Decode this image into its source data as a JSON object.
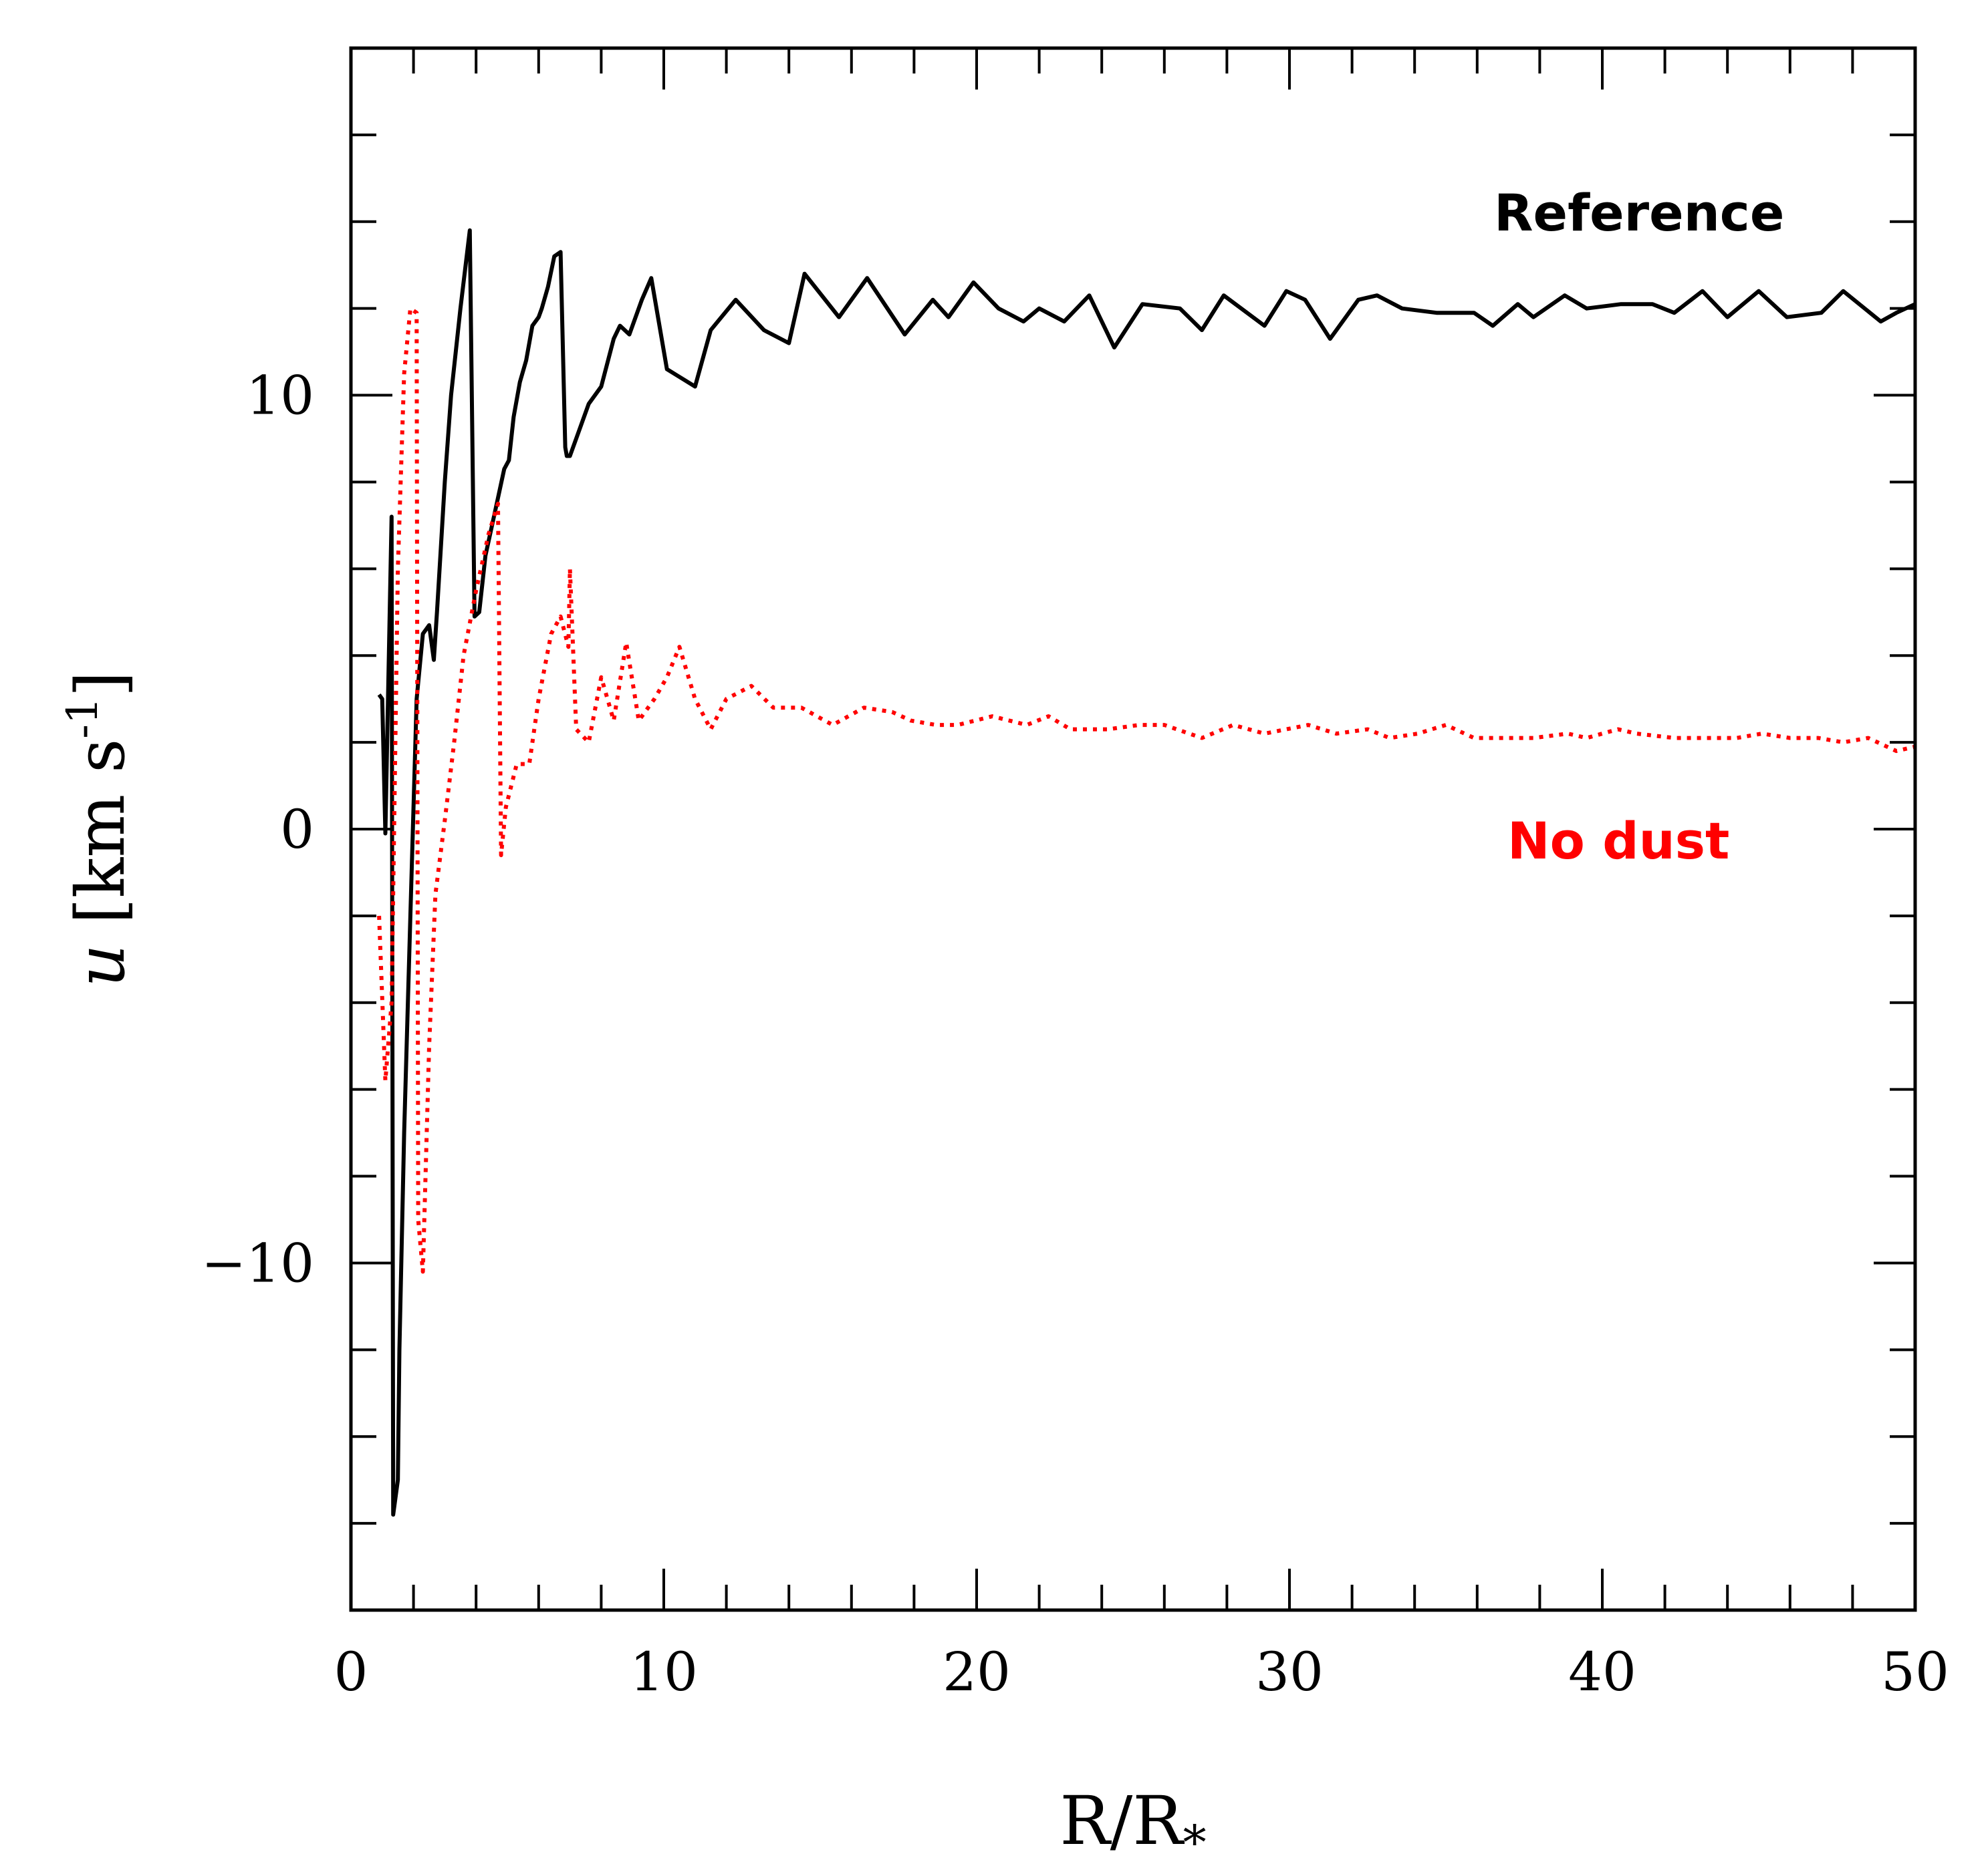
{
  "chart_data": {
    "type": "line",
    "title": "",
    "xlabel": "R/R",
    "xlabel_sub": "*",
    "ylabel": "u",
    "ylabel_units": "[km s",
    "ylabel_exp": "-1",
    "ylabel_close": "]",
    "xlim": [
      0,
      50
    ],
    "ylim": [
      -18,
      18
    ],
    "x_major_ticks": [
      0,
      10,
      20,
      30,
      40,
      50
    ],
    "x_minor_step": 2,
    "y_major_ticks": [
      -10,
      0,
      10
    ],
    "y_minor_step": 2,
    "grid": false,
    "series": [
      {
        "name": "Reference",
        "color": "#000000",
        "style": "solid",
        "label_color": "#000000",
        "x": [
          0.9,
          1.0,
          1.1,
          1.3,
          1.35,
          1.5,
          1.55,
          1.7,
          1.9,
          2.1,
          2.3,
          2.5,
          2.65,
          2.75,
          2.85,
          3.0,
          3.2,
          3.5,
          3.8,
          3.95,
          4.1,
          4.3,
          4.6,
          4.9,
          5.05,
          5.2,
          5.4,
          5.6,
          5.8,
          6.0,
          6.1,
          6.3,
          6.5,
          6.7,
          6.85,
          6.9,
          7.0,
          7.2,
          7.6,
          8.0,
          8.4,
          8.6,
          8.9,
          9.3,
          9.6,
          10.1,
          11.0,
          11.5,
          12.3,
          13.2,
          14.0,
          14.5,
          15.6,
          16.5,
          17.7,
          18.6,
          19.1,
          19.9,
          20.7,
          21.5,
          22.0,
          22.8,
          23.6,
          24.4,
          25.3,
          26.5,
          27.2,
          27.9,
          29.2,
          29.9,
          30.5,
          31.3,
          32.2,
          32.8,
          33.6,
          34.7,
          35.9,
          36.5,
          37.3,
          37.8,
          38.8,
          39.5,
          40.6,
          41.6,
          42.3,
          43.2,
          44.0,
          45.0,
          45.9,
          47.0,
          47.7,
          48.9,
          49.4,
          50.0
        ],
        "y": [
          3.1,
          3.0,
          -0.1,
          7.2,
          -15.8,
          -15.0,
          -12.0,
          -7.0,
          -2.0,
          3.0,
          4.5,
          4.7,
          3.9,
          5.0,
          6.2,
          8.0,
          10.0,
          12.0,
          13.8,
          4.9,
          5.0,
          6.3,
          7.3,
          8.3,
          8.5,
          9.5,
          10.3,
          10.8,
          11.6,
          11.8,
          12.0,
          12.5,
          13.2,
          13.3,
          8.8,
          8.6,
          8.6,
          9.0,
          9.8,
          10.2,
          11.3,
          11.6,
          11.4,
          12.2,
          12.7,
          10.6,
          10.2,
          11.5,
          12.2,
          11.5,
          11.2,
          12.8,
          11.8,
          12.7,
          11.4,
          12.2,
          11.8,
          12.6,
          12.0,
          11.7,
          12.0,
          11.7,
          12.3,
          11.1,
          12.1,
          12.0,
          11.5,
          12.3,
          11.6,
          12.4,
          12.2,
          11.3,
          12.2,
          12.3,
          12.0,
          11.9,
          11.9,
          11.6,
          12.1,
          11.8,
          12.3,
          12.0,
          12.1,
          12.1,
          11.9,
          12.4,
          11.8,
          12.4,
          11.8,
          11.9,
          12.4,
          11.7,
          11.9,
          12.1
        ]
      },
      {
        "name": "No dust",
        "color": "#ff0000",
        "style": "dotted",
        "label_color": "#ff0000",
        "x": [
          0.9,
          1.1,
          1.3,
          1.5,
          1.7,
          1.9,
          2.1,
          2.15,
          2.3,
          2.5,
          2.7,
          3.0,
          3.3,
          3.6,
          4.0,
          4.4,
          4.7,
          4.8,
          4.95,
          5.3,
          5.7,
          6.0,
          6.4,
          6.7,
          6.95,
          7.0,
          7.2,
          7.6,
          8.0,
          8.4,
          8.8,
          9.2,
          9.7,
          10.1,
          10.5,
          11.0,
          11.5,
          12.0,
          12.8,
          13.5,
          14.4,
          15.4,
          16.4,
          17.3,
          17.9,
          18.7,
          19.4,
          20.5,
          21.6,
          22.3,
          23.0,
          24.2,
          25.2,
          26.0,
          27.2,
          28.2,
          29.2,
          30.6,
          31.5,
          32.5,
          33.2,
          34.1,
          35.0,
          35.9,
          37.0,
          37.8,
          38.9,
          39.5,
          40.5,
          41.1,
          42.3,
          43.2,
          44.3,
          45.1,
          46.0,
          46.9,
          47.7,
          48.5,
          49.4,
          50.0
        ],
        "y": [
          -2.0,
          -5.8,
          -4.0,
          6.0,
          10.5,
          12.0,
          11.9,
          -9.0,
          -10.2,
          -5.0,
          -1.5,
          0.2,
          2.0,
          4.0,
          5.5,
          6.8,
          7.5,
          -0.6,
          0.5,
          1.5,
          1.5,
          3.0,
          4.5,
          4.9,
          4.2,
          6.0,
          2.3,
          2.0,
          3.5,
          2.5,
          4.3,
          2.5,
          3.0,
          3.5,
          4.2,
          3.0,
          2.3,
          3.0,
          3.3,
          2.8,
          2.8,
          2.4,
          2.8,
          2.7,
          2.5,
          2.4,
          2.4,
          2.6,
          2.4,
          2.6,
          2.3,
          2.3,
          2.4,
          2.4,
          2.1,
          2.4,
          2.2,
          2.4,
          2.2,
          2.3,
          2.1,
          2.2,
          2.4,
          2.1,
          2.1,
          2.1,
          2.2,
          2.1,
          2.3,
          2.2,
          2.1,
          2.1,
          2.1,
          2.2,
          2.1,
          2.1,
          2.0,
          2.1,
          1.8,
          1.9
        ]
      }
    ],
    "legend": [
      {
        "text": "Reference",
        "color": "#000000"
      },
      {
        "text": "No dust",
        "color": "#ff0000"
      }
    ]
  }
}
